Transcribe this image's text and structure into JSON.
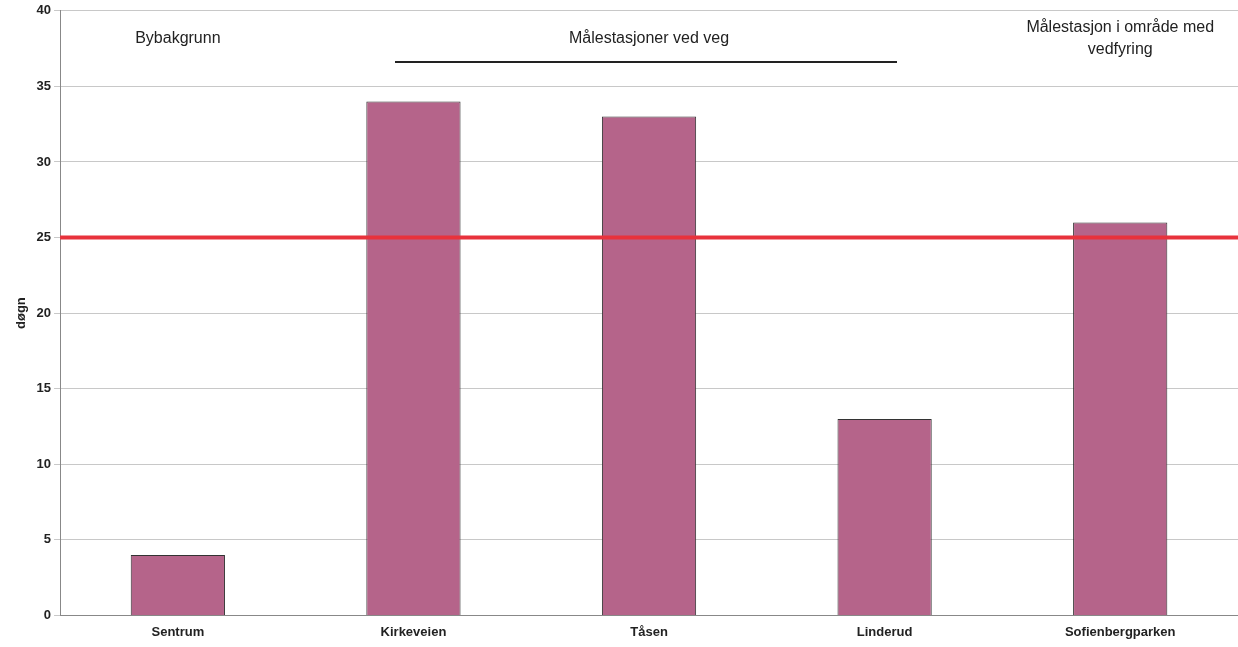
{
  "chart_data": {
    "type": "bar",
    "ylabel": "døgn",
    "categories": [
      "Sentrum",
      "Kirkeveien",
      "Tåsen",
      "Linderud",
      "Sofienbergparken"
    ],
    "values": [
      4,
      34,
      33,
      13,
      26
    ],
    "color": "#b5648a",
    "ylim": [
      0,
      40
    ],
    "yticks": [
      0,
      5,
      10,
      15,
      20,
      25,
      30,
      35,
      40
    ],
    "grid": "y",
    "ref_lines": [
      {
        "axis": "y",
        "value": 25,
        "color": "#e8323c"
      }
    ],
    "annotations": [
      "Bybakgrunn",
      "Målestasjoner ved veg",
      "Målestasjon i område med vedfyring"
    ]
  }
}
